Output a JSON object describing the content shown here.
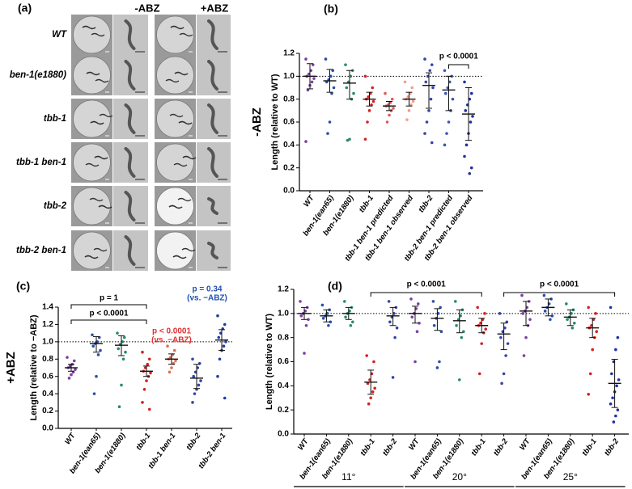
{
  "panel_a": {
    "label": "(a)",
    "columns": [
      "-ABZ",
      "+ABZ"
    ],
    "rows": [
      "WT",
      "ben-1(e1880)",
      "tbb-1",
      "tbb-1 ben-1",
      "tbb-2",
      "tbb-2  ben-1"
    ]
  },
  "chart_data": [
    {
      "type": "dot",
      "label": "(b)",
      "side_title": "-ABZ",
      "y_label": "Length (relative to WT)",
      "ylim": [
        0,
        1.2
      ],
      "yticks": [
        {
          "value": 0,
          "label": "0.0"
        },
        0.2,
        0.4,
        0.6,
        0.8,
        {
          "value": 1,
          "label": "1.0"
        },
        1.2
      ],
      "reference_line": 1,
      "categories": [
        "WT",
        "ben-1(ean65)",
        "ben-1(e1880)",
        "tbb-1",
        "tbb-1 ben-1 predicted",
        "tbb-1 ben-1 observed",
        "tbb-2",
        "tbb-2 ben-1 predicted",
        "tbb-2 ben-1 observed"
      ],
      "groups": [
        {
          "color": "#7b3fa0",
          "mean": 1.0,
          "sd": [
            0.89,
            1.11
          ],
          "points": [
            1.15,
            1.1,
            1.05,
            1.02,
            1.0,
            0.98,
            0.95,
            0.92,
            0.88,
            0.43
          ]
        },
        {
          "color": "#2b4fa8",
          "mean": 0.96,
          "sd": [
            0.86,
            1.06
          ],
          "points": [
            1.15,
            1.05,
            1.0,
            0.97,
            0.95,
            0.9,
            0.85,
            0.6,
            0.5
          ]
        },
        {
          "color": "#2a8a6a",
          "mean": 0.94,
          "sd": [
            0.8,
            1.05
          ],
          "points": [
            1.1,
            1.05,
            1.0,
            0.95,
            0.9,
            0.85,
            0.8,
            0.45,
            0.44
          ]
        },
        {
          "color": "#d62020",
          "mean": 0.8,
          "sd": [
            0.74,
            0.86
          ],
          "points": [
            1.0,
            0.9,
            0.85,
            0.82,
            0.8,
            0.78,
            0.75,
            0.7,
            0.6,
            0.45
          ]
        },
        {
          "color": "#e05a5a",
          "mean": 0.74,
          "sd": [
            0.7,
            0.78
          ],
          "points": [
            0.85,
            0.8,
            0.77,
            0.75,
            0.74,
            0.72,
            0.7,
            0.66,
            0.6
          ]
        },
        {
          "color": "#f0a088",
          "mean": 0.8,
          "sd": [
            0.74,
            0.86
          ],
          "points": [
            0.95,
            0.9,
            0.85,
            0.82,
            0.8,
            0.78,
            0.75,
            0.7,
            0.62
          ]
        },
        {
          "color": "#3545a5",
          "mean": 0.92,
          "sd": [
            0.72,
            1.03
          ],
          "points": [
            1.15,
            1.1,
            1.05,
            1.0,
            0.95,
            0.9,
            0.8,
            0.7,
            0.6,
            0.5,
            0.42
          ]
        },
        {
          "color": "#3a55b5",
          "mean": 0.88,
          "sd": [
            0.7,
            1.0
          ],
          "points": [
            1.05,
            1.0,
            0.95,
            0.9,
            0.85,
            0.8,
            0.7,
            0.6,
            0.5,
            0.4
          ]
        },
        {
          "color": "#1f2f9f",
          "mean": 0.67,
          "sd": [
            0.44,
            0.9
          ],
          "points": [
            0.95,
            0.85,
            0.8,
            0.75,
            0.7,
            0.65,
            0.6,
            0.5,
            0.4,
            0.3,
            0.2,
            0.15
          ]
        }
      ],
      "annotations": [
        {
          "text": "p < 0.0001",
          "color": "#000000"
        }
      ]
    },
    {
      "type": "dot",
      "label": "(c)",
      "side_title": "+ABZ",
      "y_label": "Length (relative to −ABZ)",
      "ylim": [
        0,
        1.4
      ],
      "yticks": [
        {
          "value": 0,
          "label": "0.0"
        },
        0.2,
        0.4,
        0.6,
        0.8,
        {
          "value": 1,
          "label": "1.0"
        },
        1.2,
        1.4
      ],
      "reference_line": 1,
      "categories": [
        "WT",
        "ben-1(ean65)",
        "ben-1(e1880)",
        "tbb-1",
        "tbb-1 ben-1",
        "tbb-2",
        "tbb-2 ben-1"
      ],
      "groups": [
        {
          "color": "#7b3fa0",
          "mean": 0.7,
          "sd": [
            0.66,
            0.74
          ],
          "points": [
            0.82,
            0.78,
            0.74,
            0.72,
            0.7,
            0.68,
            0.65,
            0.62,
            0.58
          ]
        },
        {
          "color": "#2b4fa8",
          "mean": 0.98,
          "sd": [
            0.88,
            1.06
          ],
          "points": [
            1.08,
            1.05,
            1.0,
            0.98,
            0.95,
            0.9,
            0.85,
            0.6,
            0.4
          ]
        },
        {
          "color": "#2a8a6a",
          "mean": 0.96,
          "sd": [
            0.84,
            1.07
          ],
          "points": [
            1.1,
            1.05,
            1.0,
            0.97,
            0.92,
            0.88,
            0.8,
            0.5,
            0.25
          ]
        },
        {
          "color": "#d62020",
          "mean": 0.66,
          "sd": [
            0.6,
            0.72
          ],
          "points": [
            0.88,
            0.8,
            0.74,
            0.7,
            0.66,
            0.64,
            0.6,
            0.55,
            0.45,
            0.3,
            0.22
          ]
        },
        {
          "color": "#e07050",
          "mean": 0.8,
          "sd": [
            0.74,
            0.86
          ],
          "points": [
            0.95,
            0.9,
            0.85,
            0.82,
            0.8,
            0.78,
            0.75,
            0.7,
            0.65
          ]
        },
        {
          "color": "#3545a5",
          "mean": 0.58,
          "sd": [
            0.46,
            0.74
          ],
          "points": [
            0.8,
            0.75,
            0.7,
            0.65,
            0.6,
            0.55,
            0.5,
            0.45,
            0.4,
            0.3
          ]
        },
        {
          "color": "#1f3f9f",
          "mean": 1.02,
          "sd": [
            0.9,
            1.14
          ],
          "points": [
            1.3,
            1.2,
            1.15,
            1.1,
            1.05,
            1.0,
            0.95,
            0.9,
            0.8,
            0.6,
            0.35
          ]
        }
      ],
      "annotations": [
        {
          "text": "p = 1",
          "color": "#000000"
        },
        {
          "text": "p < 0.0001",
          "color": "#000000"
        },
        {
          "text": "p < 0.0001",
          "color": "#e03030"
        },
        {
          "text": "(vs. −ABZ)",
          "color": "#e03030"
        },
        {
          "text": "p = 0.34",
          "color": "#2050b0"
        },
        {
          "text": "(vs. −ABZ)",
          "color": "#2050b0"
        }
      ]
    },
    {
      "type": "dot",
      "label": "(d)",
      "y_label": "Length (relative to WT)",
      "ylim": [
        0,
        1.2
      ],
      "yticks": [
        {
          "value": 0,
          "label": "0.0"
        },
        0.2,
        0.4,
        0.6,
        0.8,
        {
          "value": 1,
          "label": "1.0"
        },
        1.2
      ],
      "reference_line": 1,
      "categories": [
        "WT",
        "ben-1(ean65)",
        "ben-1(e1880)",
        "tbb-1",
        "tbb-2",
        "WT",
        "ben-1(ean65)",
        "ben-1(e1880)",
        "tbb-1",
        "tbb-2",
        "WT",
        "ben-1(ean65)",
        "ben-1(e1880)",
        "tbb-1",
        "tbb-2"
      ],
      "temperature_groups": [
        "11°",
        "20°",
        "25°"
      ],
      "groups": [
        {
          "color": "#7b3fa0",
          "mean": 1.0,
          "sd": [
            0.95,
            1.05
          ],
          "points": [
            1.1,
            1.05,
            1.02,
            1.0,
            0.98,
            0.95,
            0.9,
            0.67
          ]
        },
        {
          "color": "#2b4fa8",
          "mean": 0.98,
          "sd": [
            0.93,
            1.03
          ],
          "points": [
            1.07,
            1.03,
            1.0,
            0.98,
            0.96,
            0.93,
            0.9
          ]
        },
        {
          "color": "#2a8a6a",
          "mean": 1.0,
          "sd": [
            0.95,
            1.05
          ],
          "points": [
            1.1,
            1.05,
            1.02,
            1.0,
            0.97,
            0.93,
            0.9
          ]
        },
        {
          "color": "#d62020",
          "mean": 0.43,
          "sd": [
            0.33,
            0.53
          ],
          "points": [
            0.65,
            0.6,
            0.5,
            0.45,
            0.42,
            0.38,
            0.35,
            0.3,
            0.25
          ]
        },
        {
          "color": "#3545a5",
          "mean": 0.98,
          "sd": [
            0.9,
            1.05
          ],
          "points": [
            1.1,
            1.05,
            1.0,
            0.97,
            0.93,
            0.88,
            0.8,
            0.47
          ]
        },
        {
          "color": "#7b3fa0",
          "mean": 1.0,
          "sd": [
            0.92,
            1.06
          ],
          "points": [
            1.12,
            1.08,
            1.04,
            1.0,
            0.97,
            0.92,
            0.85,
            0.6
          ]
        },
        {
          "color": "#2b4fa8",
          "mean": 0.96,
          "sd": [
            0.86,
            1.04
          ],
          "points": [
            1.1,
            1.05,
            1.0,
            0.96,
            0.9,
            0.85,
            0.6,
            0.55
          ]
        },
        {
          "color": "#2a8a6a",
          "mean": 0.94,
          "sd": [
            0.84,
            1.03
          ],
          "points": [
            1.1,
            1.03,
            0.98,
            0.95,
            0.9,
            0.85,
            0.8,
            0.45
          ]
        },
        {
          "color": "#d62020",
          "mean": 0.9,
          "sd": [
            0.84,
            0.96
          ],
          "points": [
            1.05,
            1.0,
            0.95,
            0.92,
            0.9,
            0.87,
            0.84,
            0.75,
            0.5
          ]
        },
        {
          "color": "#3545a5",
          "mean": 0.83,
          "sd": [
            0.7,
            0.92
          ],
          "points": [
            1.0,
            0.93,
            0.88,
            0.85,
            0.8,
            0.75,
            0.65,
            0.5,
            0.42
          ]
        },
        {
          "color": "#7b3fa0",
          "mean": 1.02,
          "sd": [
            0.9,
            1.1
          ],
          "points": [
            1.15,
            1.1,
            1.05,
            1.02,
            1.0,
            0.95,
            0.9,
            0.8,
            0.65
          ]
        },
        {
          "color": "#2b4fa8",
          "mean": 1.05,
          "sd": [
            0.98,
            1.12
          ],
          "points": [
            1.15,
            1.12,
            1.08,
            1.05,
            1.02,
            0.98,
            0.95
          ]
        },
        {
          "color": "#2a8a6a",
          "mean": 0.97,
          "sd": [
            0.9,
            1.03
          ],
          "points": [
            1.08,
            1.03,
            1.0,
            0.97,
            0.95,
            0.92,
            0.88
          ]
        },
        {
          "color": "#d62020",
          "mean": 0.88,
          "sd": [
            0.8,
            0.96
          ],
          "points": [
            1.05,
            1.0,
            0.95,
            0.9,
            0.88,
            0.85,
            0.8,
            0.7,
            0.5,
            0.33
          ]
        },
        {
          "color": "#2030a8",
          "mean": 0.42,
          "sd": [
            0.22,
            0.62
          ],
          "points": [
            1.05,
            0.8,
            0.7,
            0.6,
            0.5,
            0.45,
            0.4,
            0.35,
            0.3,
            0.25,
            0.2,
            0.15,
            0.1
          ]
        }
      ],
      "annotations": [
        {
          "text": "p < 0.0001",
          "color": "#000000"
        },
        {
          "text": "p < 0.0001",
          "color": "#000000"
        }
      ]
    }
  ]
}
